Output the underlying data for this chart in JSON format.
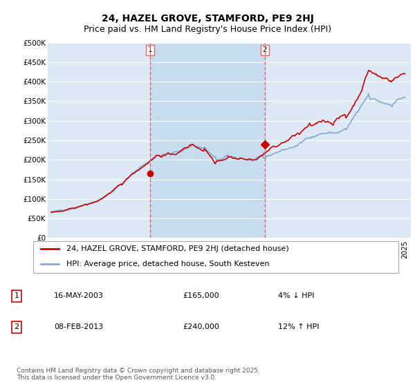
{
  "title": "24, HAZEL GROVE, STAMFORD, PE9 2HJ",
  "subtitle": "Price paid vs. HM Land Registry's House Price Index (HPI)",
  "ylim": [
    0,
    500000
  ],
  "yticks": [
    0,
    50000,
    100000,
    150000,
    200000,
    250000,
    300000,
    350000,
    400000,
    450000,
    500000
  ],
  "ytick_labels": [
    "£0",
    "£50K",
    "£100K",
    "£150K",
    "£200K",
    "£250K",
    "£300K",
    "£350K",
    "£400K",
    "£450K",
    "£500K"
  ],
  "xlim_left": 1994.7,
  "xlim_right": 2025.5,
  "bg_color": "#dce9f5",
  "highlight_color": "#c8dcf0",
  "grid_color": "#ffffff",
  "sale1_price": 165000,
  "sale2_price": 240000,
  "sale1_label": "16-MAY-2003",
  "sale2_label": "08-FEB-2013",
  "sale1_pct": "4% ↓ HPI",
  "sale2_pct": "12% ↑ HPI",
  "sale1_amount": "£165,000",
  "sale2_amount": "£240,000",
  "legend_line1": "24, HAZEL GROVE, STAMFORD, PE9 2HJ (detached house)",
  "legend_line2": "HPI: Average price, detached house, South Kesteven",
  "footer": "Contains HM Land Registry data © Crown copyright and database right 2025.\nThis data is licensed under the Open Government Licence v3.0.",
  "property_color": "#cc0000",
  "hpi_color": "#88aacc",
  "vline_color": "#dd6666",
  "title_fontsize": 10,
  "subtitle_fontsize": 9,
  "tick_fontsize": 7.5,
  "legend_fontsize": 8,
  "table_fontsize": 8,
  "footer_fontsize": 6.5
}
